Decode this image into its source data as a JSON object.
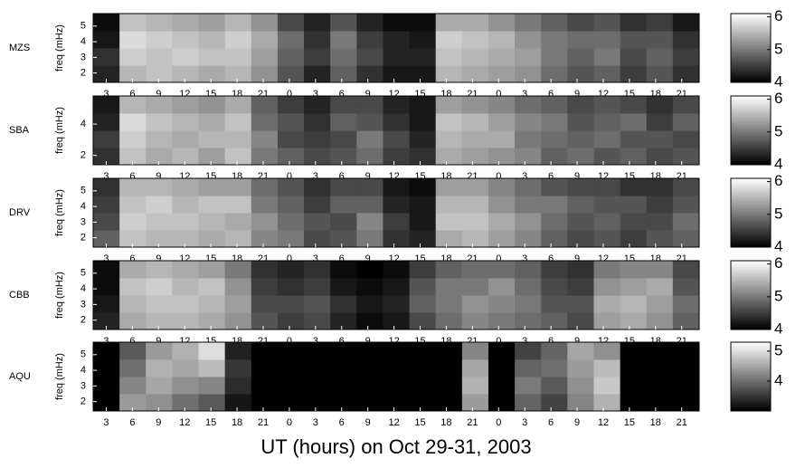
{
  "chart_data": [
    {
      "type": "heatmap",
      "label": "MZS",
      "ylabel": "freq (mHz)",
      "xlim": [
        1.5,
        71
      ],
      "ylim": [
        1.4,
        5.8
      ],
      "yticks": [
        2,
        3,
        4,
        5
      ],
      "clim": [
        4,
        6.1
      ],
      "cticks": [
        4,
        5,
        6
      ],
      "xticks": [
        3,
        6,
        9,
        12,
        15,
        18,
        21,
        {
          "value": 24,
          "label": "0"
        },
        {
          "value": 27,
          "label": "3"
        },
        {
          "value": 30,
          "label": "6"
        },
        {
          "value": 33,
          "label": "9"
        },
        {
          "value": 36,
          "label": "12"
        },
        {
          "value": 39,
          "label": "15"
        },
        {
          "value": 42,
          "label": "18"
        },
        {
          "value": 45,
          "label": "21"
        },
        {
          "value": 48,
          "label": "0"
        },
        {
          "value": 51,
          "label": "3"
        },
        {
          "value": 54,
          "label": "6"
        },
        {
          "value": 57,
          "label": "9"
        },
        {
          "value": 60,
          "label": "12"
        },
        {
          "value": 63,
          "label": "15"
        },
        {
          "value": 66,
          "label": "18"
        },
        {
          "value": 69,
          "label": "21"
        }
      ],
      "z": [
        [
          4.3,
          5.5,
          5.6,
          5.5,
          5.4,
          5.5,
          5.2,
          4.7,
          4.3,
          4.8,
          4.4,
          4.2,
          4.2,
          5.5,
          5.4,
          5.3,
          5.2,
          4.9,
          4.7,
          4.8,
          4.5,
          4.7,
          4.4
        ],
        [
          4.4,
          5.7,
          5.6,
          5.7,
          5.6,
          5.6,
          5.3,
          4.8,
          4.5,
          4.9,
          4.6,
          4.3,
          4.3,
          5.6,
          5.5,
          5.4,
          5.3,
          5.0,
          4.8,
          5.0,
          4.6,
          4.8,
          4.5
        ],
        [
          4.2,
          5.8,
          5.7,
          5.6,
          5.5,
          5.7,
          5.4,
          4.9,
          4.4,
          5.0,
          4.5,
          4.3,
          4.2,
          5.7,
          5.6,
          5.5,
          5.2,
          5.0,
          4.9,
          4.9,
          4.7,
          4.7,
          4.4
        ],
        [
          4.1,
          5.6,
          5.5,
          5.4,
          5.3,
          5.5,
          5.2,
          4.6,
          4.3,
          4.7,
          4.3,
          4.1,
          4.1,
          5.4,
          5.4,
          5.2,
          5.0,
          4.8,
          4.6,
          4.7,
          4.4,
          4.5,
          4.2
        ]
      ]
    },
    {
      "type": "heatmap",
      "label": "SBA",
      "ylabel": "freq (mHz)",
      "xlim": [
        1.5,
        71
      ],
      "ylim": [
        1.4,
        5.8
      ],
      "yticks": [
        2,
        4
      ],
      "clim": [
        4,
        6.1
      ],
      "cticks": [
        4,
        5,
        6
      ],
      "xticks": [
        3,
        6,
        9,
        12,
        15,
        18,
        21,
        {
          "value": 24,
          "label": "0"
        },
        {
          "value": 27,
          "label": "3"
        },
        {
          "value": 30,
          "label": "6"
        },
        {
          "value": 33,
          "label": "9"
        },
        {
          "value": 36,
          "label": "12"
        },
        {
          "value": 39,
          "label": "15"
        },
        {
          "value": 42,
          "label": "18"
        },
        {
          "value": 45,
          "label": "21"
        },
        {
          "value": 48,
          "label": "0"
        },
        {
          "value": 51,
          "label": "3"
        },
        {
          "value": 54,
          "label": "6"
        },
        {
          "value": 57,
          "label": "9"
        },
        {
          "value": 60,
          "label": "12"
        },
        {
          "value": 63,
          "label": "15"
        },
        {
          "value": 66,
          "label": "18"
        },
        {
          "value": 69,
          "label": "21"
        }
      ],
      "z": [
        [
          4.4,
          5.6,
          5.4,
          5.5,
          5.3,
          5.6,
          5.0,
          4.8,
          4.6,
          4.7,
          4.9,
          4.5,
          4.4,
          5.4,
          5.3,
          5.2,
          5.1,
          4.8,
          4.9,
          4.7,
          4.8,
          4.6,
          4.7
        ],
        [
          4.5,
          5.7,
          5.5,
          5.4,
          5.5,
          5.5,
          5.1,
          4.6,
          4.5,
          4.6,
          5.0,
          4.6,
          4.3,
          5.5,
          5.4,
          5.4,
          5.0,
          4.9,
          4.8,
          4.9,
          4.7,
          4.7,
          4.6
        ],
        [
          4.3,
          5.8,
          5.6,
          5.5,
          5.4,
          5.6,
          4.9,
          4.7,
          4.4,
          4.8,
          4.7,
          4.4,
          4.2,
          5.6,
          5.5,
          5.3,
          5.1,
          5.0,
          4.7,
          4.8,
          4.9,
          4.5,
          4.8
        ],
        [
          4.2,
          5.5,
          5.4,
          5.3,
          5.2,
          5.4,
          4.8,
          4.5,
          4.3,
          4.6,
          4.6,
          4.3,
          4.2,
          5.3,
          5.2,
          5.1,
          4.9,
          4.8,
          4.6,
          4.7,
          4.6,
          4.4,
          4.6
        ]
      ]
    },
    {
      "type": "heatmap",
      "label": "DRV",
      "ylabel": "freq (mHz)",
      "xlim": [
        1.5,
        71
      ],
      "ylim": [
        1.4,
        5.8
      ],
      "yticks": [
        2,
        3,
        4,
        5
      ],
      "clim": [
        4,
        6.1
      ],
      "cticks": [
        4,
        5,
        6
      ],
      "xticks": [
        3,
        6,
        9,
        12,
        15,
        18,
        21,
        {
          "value": 24,
          "label": "0"
        },
        {
          "value": 27,
          "label": "3"
        },
        {
          "value": 30,
          "label": "6"
        },
        {
          "value": 33,
          "label": "9"
        },
        {
          "value": 36,
          "label": "12"
        },
        {
          "value": 39,
          "label": "15"
        },
        {
          "value": 42,
          "label": "18"
        },
        {
          "value": 45,
          "label": "21"
        },
        {
          "value": 48,
          "label": "0"
        },
        {
          "value": 51,
          "label": "3"
        },
        {
          "value": 54,
          "label": "6"
        },
        {
          "value": 57,
          "label": "9"
        },
        {
          "value": 60,
          "label": "12"
        },
        {
          "value": 63,
          "label": "15"
        },
        {
          "value": 66,
          "label": "18"
        },
        {
          "value": 69,
          "label": "21"
        }
      ],
      "z": [
        [
          4.8,
          5.6,
          5.5,
          5.5,
          5.4,
          5.5,
          5.1,
          5.0,
          4.6,
          4.7,
          5.0,
          4.4,
          4.3,
          5.4,
          5.5,
          5.3,
          5.1,
          4.8,
          4.6,
          4.7,
          4.5,
          4.7,
          4.8
        ],
        [
          4.6,
          5.7,
          5.6,
          5.6,
          5.5,
          5.4,
          5.2,
          4.9,
          4.7,
          4.6,
          5.1,
          4.5,
          4.2,
          5.6,
          5.6,
          5.4,
          5.2,
          4.9,
          4.7,
          4.8,
          4.6,
          4.6,
          4.9
        ],
        [
          4.5,
          5.6,
          5.7,
          5.5,
          5.6,
          5.6,
          5.0,
          4.8,
          4.5,
          4.8,
          4.8,
          4.3,
          4.2,
          5.5,
          5.5,
          5.2,
          5.0,
          5.0,
          4.8,
          4.7,
          4.7,
          4.5,
          4.7
        ],
        [
          4.4,
          5.5,
          5.5,
          5.4,
          5.3,
          5.3,
          4.9,
          4.7,
          4.4,
          4.6,
          4.6,
          4.2,
          4.1,
          5.3,
          5.3,
          5.1,
          4.9,
          4.7,
          4.6,
          4.6,
          4.4,
          4.4,
          4.6
        ]
      ]
    },
    {
      "type": "heatmap",
      "label": "CBB",
      "ylabel": "freq (mHz)",
      "xlim": [
        1.5,
        71
      ],
      "ylim": [
        1.4,
        5.8
      ],
      "yticks": [
        2,
        3,
        4,
        5
      ],
      "clim": [
        4,
        6.1
      ],
      "cticks": [
        4,
        5,
        6
      ],
      "xticks": [
        3,
        6,
        9,
        12,
        15,
        18,
        21,
        {
          "value": 24,
          "label": "0"
        },
        {
          "value": 27,
          "label": "3"
        },
        {
          "value": 30,
          "label": "6"
        },
        {
          "value": 33,
          "label": "9"
        },
        {
          "value": 36,
          "label": "12"
        },
        {
          "value": 39,
          "label": "15"
        },
        {
          "value": 42,
          "label": "18"
        },
        {
          "value": 45,
          "label": "21"
        },
        {
          "value": 48,
          "label": "0"
        },
        {
          "value": 51,
          "label": "3"
        },
        {
          "value": 54,
          "label": "6"
        },
        {
          "value": 57,
          "label": "9"
        },
        {
          "value": 60,
          "label": "12"
        },
        {
          "value": 63,
          "label": "15"
        },
        {
          "value": 66,
          "label": "18"
        },
        {
          "value": 69,
          "label": "21"
        }
      ],
      "z": [
        [
          4.3,
          5.4,
          5.5,
          5.5,
          5.4,
          5.2,
          4.7,
          4.5,
          4.6,
          4.3,
          4.1,
          4.2,
          4.6,
          4.9,
          5.1,
          5.0,
          4.9,
          4.8,
          4.6,
          5.3,
          5.4,
          5.2,
          4.8
        ],
        [
          4.2,
          5.5,
          5.6,
          5.6,
          5.5,
          5.3,
          4.6,
          4.6,
          4.7,
          4.4,
          4.2,
          4.3,
          4.8,
          5.0,
          5.2,
          5.1,
          5.0,
          4.7,
          4.7,
          5.4,
          5.5,
          5.3,
          4.9
        ],
        [
          4.1,
          5.6,
          5.7,
          5.5,
          5.6,
          5.2,
          4.5,
          4.4,
          4.5,
          4.2,
          4.1,
          4.2,
          4.7,
          5.0,
          5.0,
          5.2,
          4.9,
          4.6,
          4.5,
          5.2,
          5.3,
          5.4,
          4.7
        ],
        [
          4.1,
          5.4,
          5.5,
          5.4,
          5.3,
          5.0,
          4.4,
          4.3,
          4.4,
          4.1,
          4.0,
          4.1,
          4.5,
          4.8,
          4.9,
          4.9,
          4.8,
          4.5,
          4.4,
          5.0,
          5.1,
          5.1,
          4.6
        ]
      ]
    },
    {
      "type": "heatmap",
      "label": "AQU",
      "ylabel": "freq (mHz)",
      "xlabel": "UT (hours) on Oct 29-31, 2003",
      "xlim": [
        1.5,
        71
      ],
      "ylim": [
        1.4,
        5.8
      ],
      "yticks": [
        2,
        3,
        4,
        5
      ],
      "clim": [
        3,
        5.3
      ],
      "cticks": [
        4,
        5
      ],
      "xticks": [
        3,
        6,
        9,
        12,
        15,
        18,
        21,
        {
          "value": 24,
          "label": "0"
        },
        {
          "value": 27,
          "label": "3"
        },
        {
          "value": 30,
          "label": "6"
        },
        {
          "value": 33,
          "label": "9"
        },
        {
          "value": 36,
          "label": "12"
        },
        {
          "value": 39,
          "label": "15"
        },
        {
          "value": 42,
          "label": "18"
        },
        {
          "value": 45,
          "label": "21"
        },
        {
          "value": 48,
          "label": "0"
        },
        {
          "value": 51,
          "label": "3"
        },
        {
          "value": 54,
          "label": "6"
        },
        {
          "value": 57,
          "label": "9"
        },
        {
          "value": 60,
          "label": "12"
        },
        {
          "value": 63,
          "label": "15"
        },
        {
          "value": 66,
          "label": "18"
        },
        {
          "value": 69,
          "label": "21"
        }
      ],
      "z": [
        [
          3.0,
          4.4,
          4.3,
          4.0,
          3.8,
          3.2,
          3.0,
          3.0,
          3.0,
          3.0,
          3.0,
          3.0,
          3.0,
          3.0,
          4.4,
          3.0,
          3.9,
          3.6,
          4.2,
          4.6,
          3.0,
          3.0,
          3.0
        ],
        [
          3.0,
          4.2,
          4.5,
          4.3,
          4.2,
          3.4,
          3.0,
          3.0,
          3.0,
          3.0,
          3.0,
          3.0,
          3.0,
          3.0,
          4.6,
          3.0,
          4.1,
          3.8,
          4.3,
          4.8,
          3.0,
          3.0,
          3.0
        ],
        [
          3.0,
          4.0,
          4.6,
          4.5,
          4.7,
          3.5,
          3.0,
          3.0,
          3.0,
          3.0,
          3.0,
          3.0,
          3.0,
          3.0,
          4.5,
          3.0,
          3.9,
          4.0,
          4.4,
          4.7,
          3.0,
          3.0,
          3.0
        ],
        [
          3.0,
          3.8,
          4.4,
          4.6,
          5.0,
          3.3,
          3.0,
          3.0,
          3.0,
          3.0,
          3.0,
          3.0,
          3.0,
          3.0,
          4.2,
          3.0,
          3.6,
          3.9,
          4.5,
          4.3,
          3.0,
          3.0,
          3.0
        ]
      ]
    }
  ]
}
